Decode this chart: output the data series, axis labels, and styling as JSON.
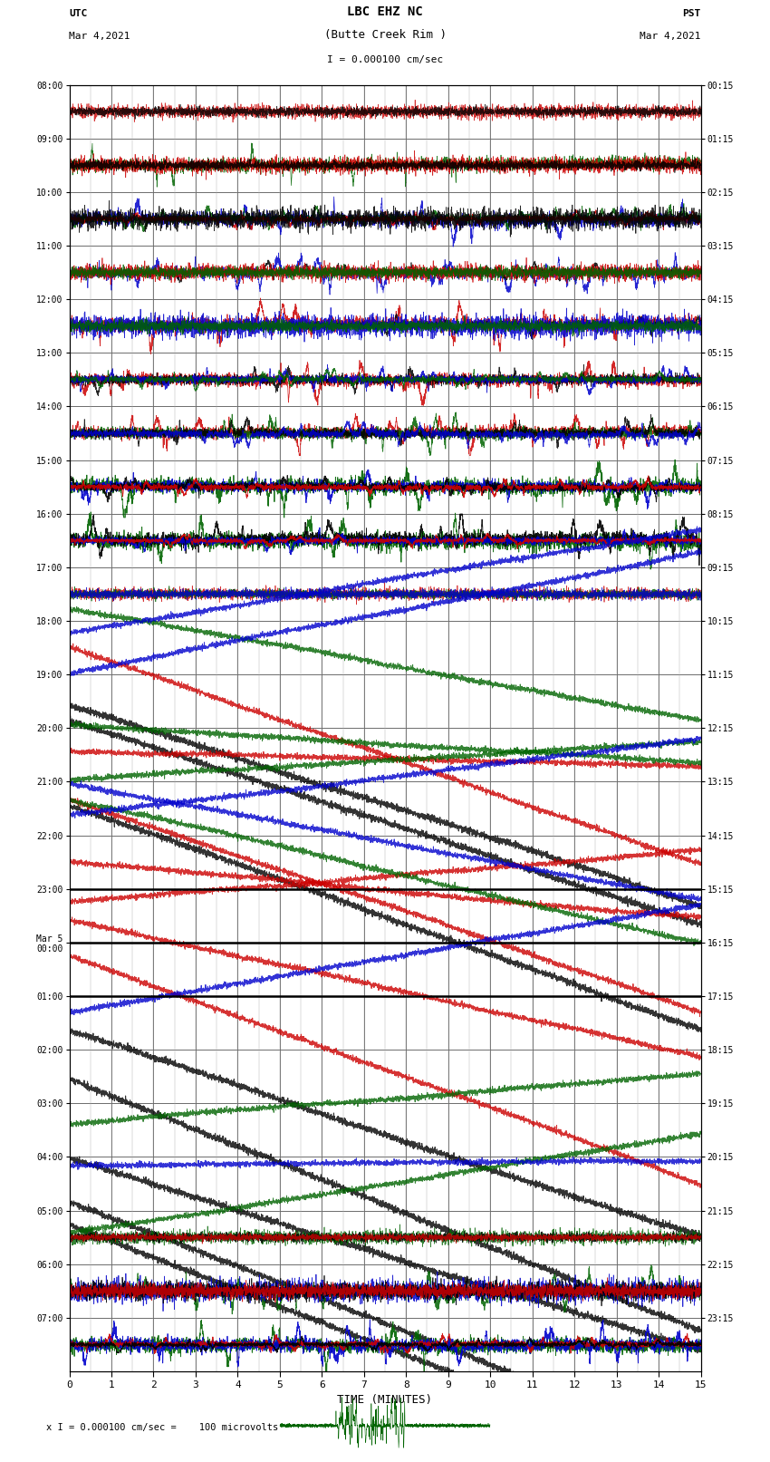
{
  "title_line1": "LBC EHZ NC",
  "title_line2": "(Butte Creek Rim )",
  "scale_label": "I = 0.000100 cm/sec",
  "utc_label": "UTC",
  "utc_date": "Mar 4,2021",
  "pst_label": "PST",
  "pst_date": "Mar 4,2021",
  "bottom_scale": "x I = 0.000100 cm/sec =    100 microvolts",
  "xlabel": "TIME (MINUTES)",
  "bg_color": "#ffffff",
  "left_times_utc": [
    "08:00",
    "09:00",
    "10:00",
    "11:00",
    "12:00",
    "13:00",
    "14:00",
    "15:00",
    "16:00",
    "17:00",
    "18:00",
    "19:00",
    "20:00",
    "21:00",
    "22:00",
    "23:00",
    "Mar 5\n00:00",
    "01:00",
    "02:00",
    "03:00",
    "04:00",
    "05:00",
    "06:00",
    "07:00"
  ],
  "right_times_pst": [
    "00:15",
    "01:15",
    "02:15",
    "03:15",
    "04:15",
    "05:15",
    "06:15",
    "07:15",
    "08:15",
    "09:15",
    "10:15",
    "11:15",
    "12:15",
    "13:15",
    "14:15",
    "15:15",
    "16:15",
    "17:15",
    "18:15",
    "19:15",
    "20:15",
    "21:15",
    "22:15",
    "23:15"
  ],
  "num_rows": 24,
  "x_min": 0,
  "x_max": 15,
  "x_ticks": [
    0,
    1,
    2,
    3,
    4,
    5,
    6,
    7,
    8,
    9,
    10,
    11,
    12,
    13,
    14,
    15
  ],
  "colors": {
    "black": "#000000",
    "red": "#cc0000",
    "green": "#006400",
    "blue": "#0000cc"
  }
}
